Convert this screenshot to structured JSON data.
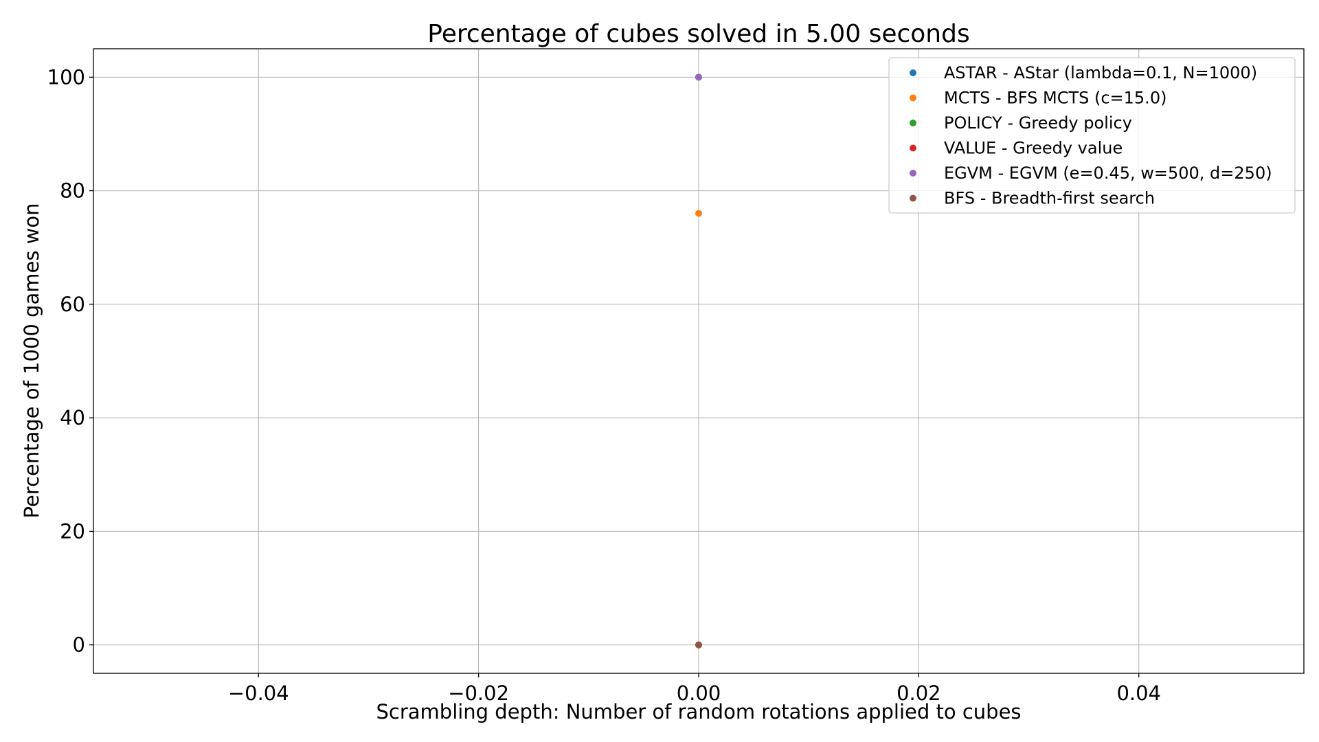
{
  "chart_data": {
    "type": "scatter",
    "title": "Percentage of cubes solved in 5.00 seconds",
    "xlabel": "Scrambling depth: Number of random rotations applied to cubes",
    "ylabel": "Percentage of 1000 games won",
    "xlim": [
      -0.055,
      0.055
    ],
    "ylim": [
      -5,
      105
    ],
    "x_ticks": [
      -0.04,
      -0.02,
      0.0,
      0.02,
      0.04
    ],
    "x_tick_labels": [
      "−0.04",
      "−0.02",
      "0.00",
      "0.02",
      "0.04"
    ],
    "y_ticks": [
      0,
      20,
      40,
      60,
      80,
      100
    ],
    "y_tick_labels": [
      "0",
      "20",
      "40",
      "60",
      "80",
      "100"
    ],
    "grid": true,
    "legend_position": "top-right",
    "series": [
      {
        "name": "ASTAR - AStar (lambda=0.1, N=1000)",
        "color": "#1f77b4",
        "x": [
          0
        ],
        "y": [
          100
        ]
      },
      {
        "name": "MCTS - BFS MCTS (c=15.0)",
        "color": "#ff7f0e",
        "x": [
          0
        ],
        "y": [
          76
        ]
      },
      {
        "name": "POLICY - Greedy policy",
        "color": "#2ca02c",
        "x": [
          0
        ],
        "y": [
          0
        ]
      },
      {
        "name": "VALUE - Greedy value",
        "color": "#d62728",
        "x": [
          0
        ],
        "y": [
          0
        ]
      },
      {
        "name": "EGVM - EGVM (e=0.45, w=500, d=250)",
        "color": "#9467bd",
        "x": [
          0
        ],
        "y": [
          100
        ]
      },
      {
        "name": "BFS - Breadth-first search",
        "color": "#8c564b",
        "x": [
          0
        ],
        "y": [
          0
        ]
      }
    ]
  }
}
